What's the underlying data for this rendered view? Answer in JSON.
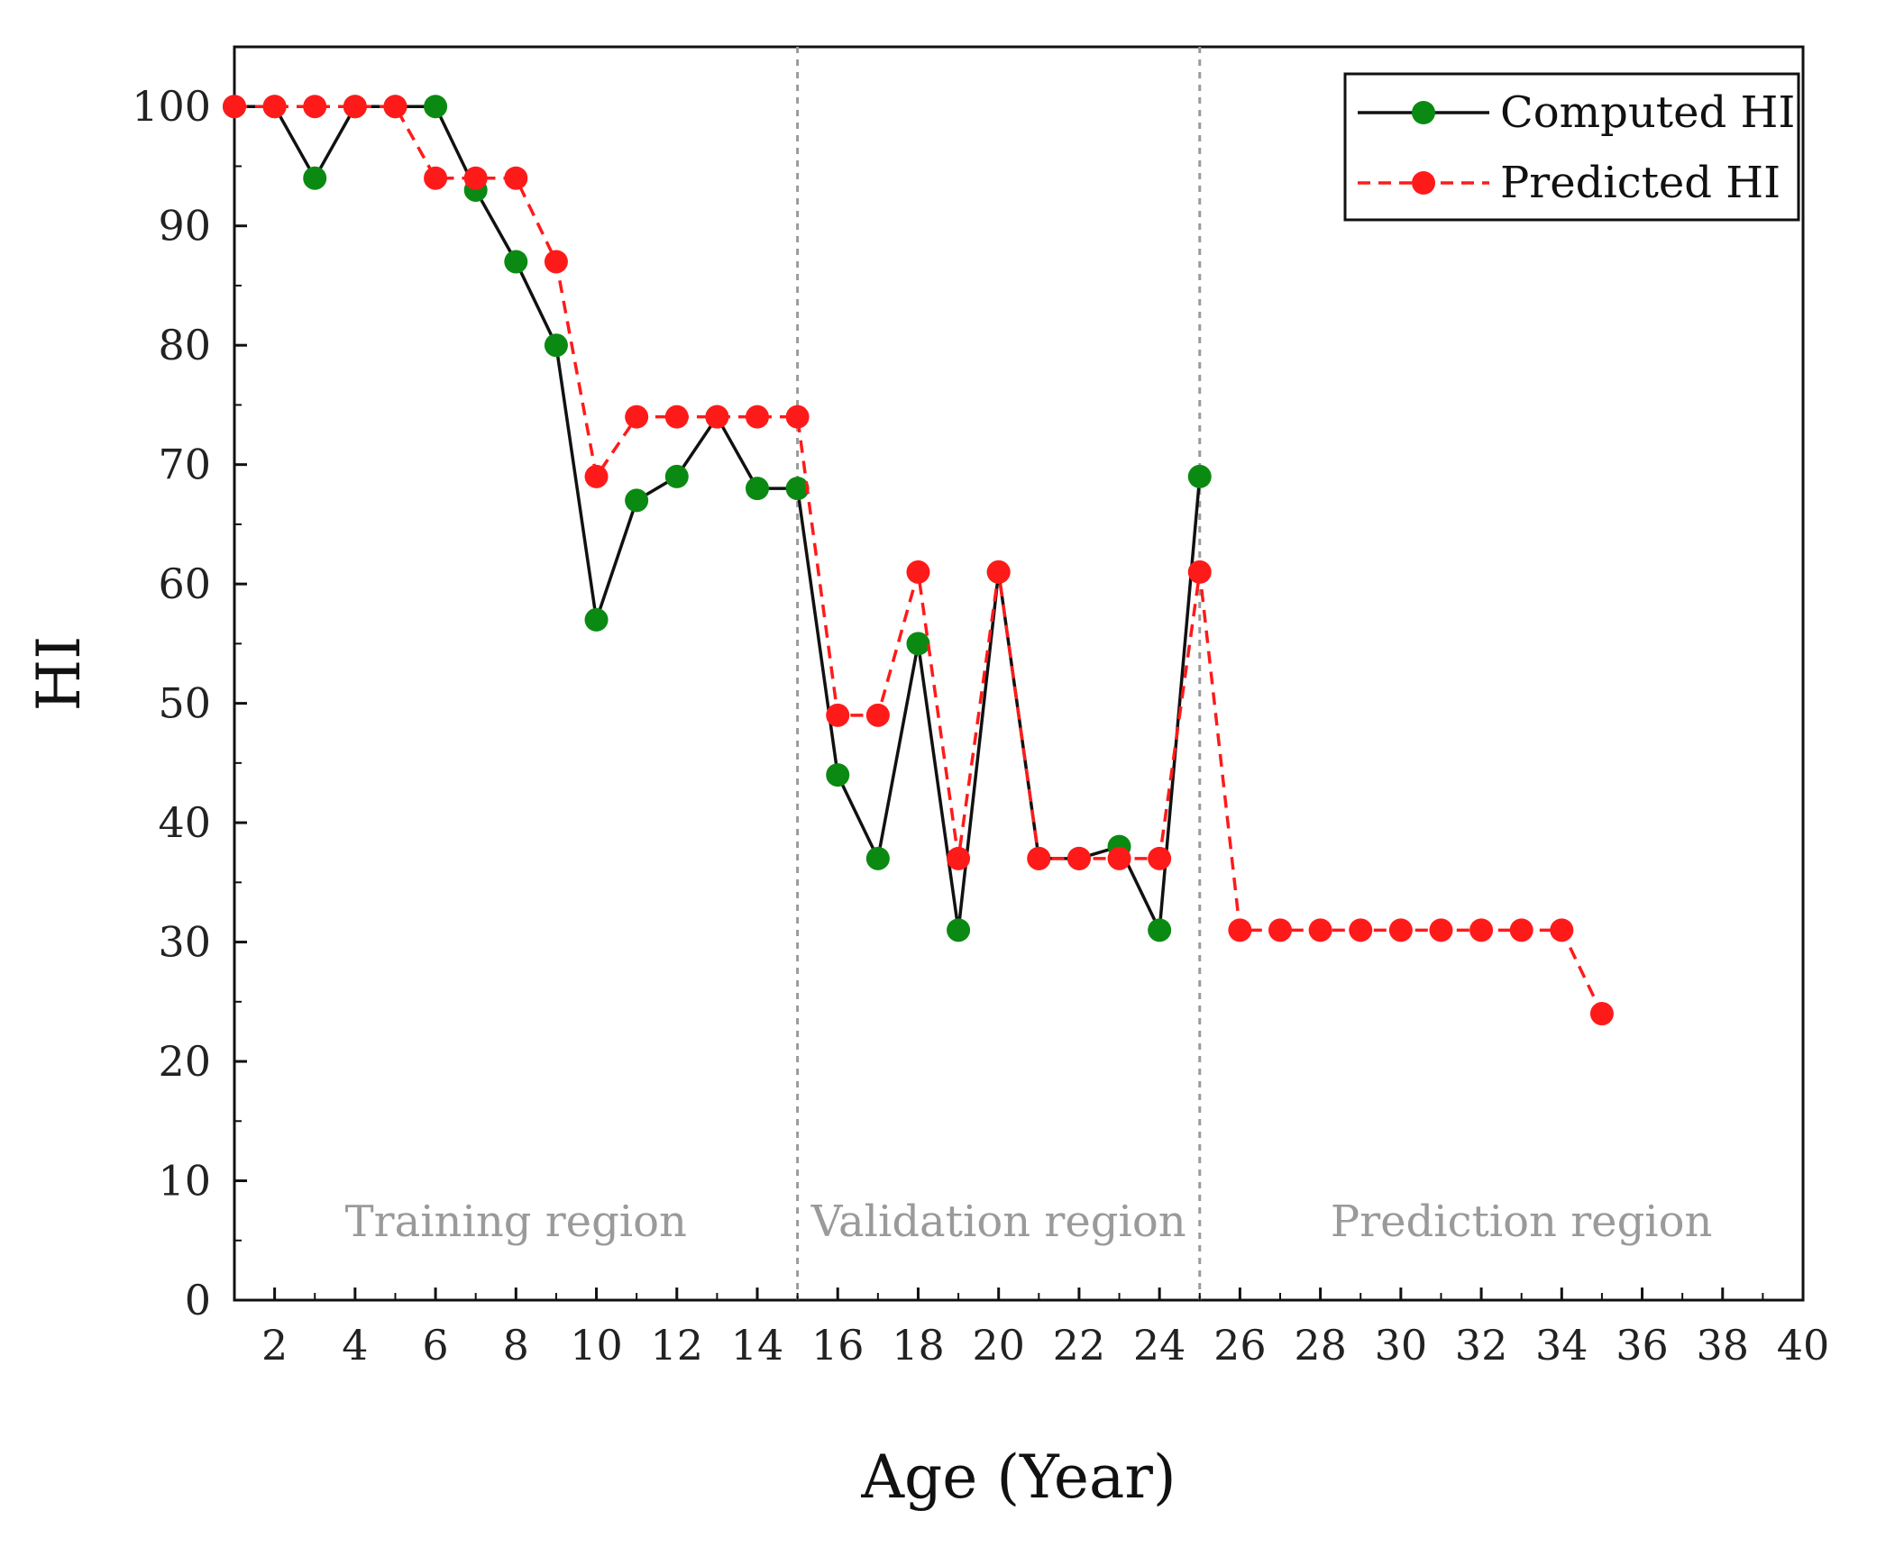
{
  "colors": {
    "computed_line": "#111111",
    "computed_marker": "#0a8a12",
    "predicted": "#ff1a1a",
    "divider": "#9a9a9a",
    "region_text": "#9a9a9a"
  },
  "chart_data": {
    "type": "line",
    "title": "",
    "xlabel": "Age (Year)",
    "ylabel": "HI",
    "xlim": [
      1,
      40
    ],
    "ylim": [
      0,
      105
    ],
    "xticks": [
      2,
      4,
      6,
      8,
      10,
      12,
      14,
      16,
      18,
      20,
      22,
      24,
      26,
      28,
      30,
      32,
      34,
      36,
      38,
      40
    ],
    "yticks": [
      0,
      10,
      20,
      30,
      40,
      50,
      60,
      70,
      80,
      90,
      100
    ],
    "grid": false,
    "legend_position": "top-right",
    "region_dividers": [
      15,
      25
    ],
    "regions": [
      {
        "label": "Training region",
        "x_center": 8
      },
      {
        "label": "Validation region",
        "x_center": 20
      },
      {
        "label": "Prediction region",
        "x_center": 33
      }
    ],
    "series": [
      {
        "name": "Computed HI",
        "style": "solid",
        "x": [
          1,
          2,
          3,
          4,
          5,
          6,
          7,
          8,
          9,
          10,
          11,
          12,
          13,
          14,
          15,
          16,
          17,
          18,
          19,
          20,
          21,
          22,
          23,
          24,
          25
        ],
        "values": [
          100,
          100,
          94,
          100,
          100,
          100,
          93,
          87,
          80,
          57,
          67,
          69,
          74,
          68,
          68,
          44,
          37,
          55,
          31,
          61,
          37,
          37,
          38,
          31,
          69
        ]
      },
      {
        "name": "Predicted HI",
        "style": "dashed",
        "x": [
          1,
          2,
          3,
          4,
          5,
          6,
          7,
          8,
          9,
          10,
          11,
          12,
          13,
          14,
          15,
          16,
          17,
          18,
          19,
          20,
          21,
          22,
          23,
          24,
          25,
          26,
          27,
          28,
          29,
          30,
          31,
          32,
          33,
          34,
          35
        ],
        "values": [
          100,
          100,
          100,
          100,
          100,
          94,
          94,
          94,
          87,
          69,
          74,
          74,
          74,
          74,
          74,
          49,
          49,
          61,
          37,
          61,
          37,
          37,
          37,
          37,
          61,
          31,
          31,
          31,
          31,
          31,
          31,
          31,
          31,
          31,
          24
        ]
      }
    ]
  }
}
